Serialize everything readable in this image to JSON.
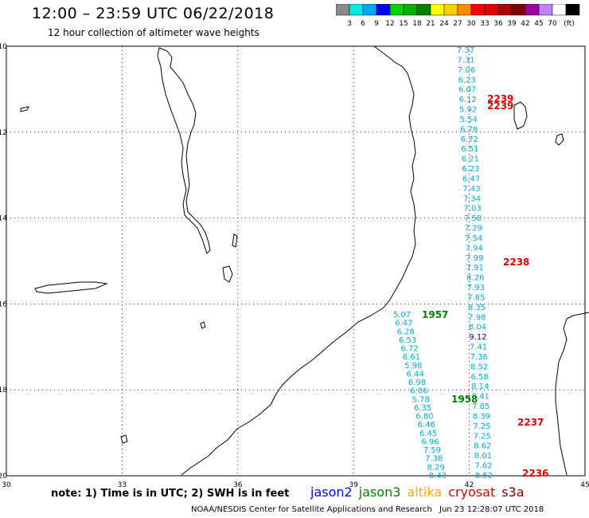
{
  "title": "12:00 – 23:59 UTC 06/22/2018",
  "subtitle": "12 hour collection of altimeter wave heights",
  "legend": {
    "colors": [
      "#8a8a8a",
      "#00e8e8",
      "#00a8ff",
      "#0000ff",
      "#00d400",
      "#00b000",
      "#008000",
      "#ffff00",
      "#ffcc00",
      "#ff8a00",
      "#ff0000",
      "#e00000",
      "#b00000",
      "#800000",
      "#a000a0",
      "#c080ff",
      "#ffffff",
      "#000000"
    ],
    "labels": [
      "3",
      "6",
      "9",
      "12",
      "15",
      "18",
      "21",
      "24",
      "27",
      "30",
      "33",
      "36",
      "39",
      "42",
      "45",
      "70",
      "(ft)"
    ]
  },
  "map": {
    "lon_range": [
      30,
      45
    ],
    "lat_range": [
      -20,
      -10
    ],
    "x_ticks": [
      "30",
      "33",
      "36",
      "39",
      "42",
      "45"
    ],
    "y_ticks": [
      "-10",
      "-12",
      "-14",
      "-16",
      "-18",
      "-20"
    ]
  },
  "tracks": [
    {
      "color": "#00aadd",
      "values": [
        "7.37",
        "7.31",
        "7.06",
        "6.23",
        "6.07",
        "6.12",
        "5.92",
        "5.54",
        "6.78",
        "6.72",
        "6.51",
        "6.21",
        "6.23",
        "6.47",
        "7.43",
        "7.34",
        "7.03",
        "7.58",
        "7.29",
        "7.54",
        "7.94",
        "7.99",
        "7.91",
        "8.26",
        "7.93",
        "7.85",
        "8.35",
        "7.98",
        "8.04",
        "9.12",
        "7.41",
        "7.36",
        "8.52",
        "6.58",
        "8.14",
        "8.41",
        "7.85",
        "8.39",
        "7.25",
        "7.25",
        "8.62",
        "8.01",
        "7.62",
        "8.52"
      ]
    },
    {
      "color": "#00aadd",
      "values": [
        "5.07",
        "6.47",
        "6.28",
        "6.53",
        "6.72",
        "6.61",
        "5.98",
        "6.44",
        "6.98",
        "6.06",
        "5.78",
        "6.35",
        "6.80",
        "6.46",
        "6.45",
        "6.96",
        "7.59",
        "7.38",
        "8.29",
        "8.43"
      ]
    }
  ],
  "time_labels": [
    {
      "text": "2239",
      "color": "#e00000"
    },
    {
      "text": "2239",
      "color": "#e00000"
    },
    {
      "text": "2238",
      "color": "#e00000"
    },
    {
      "text": "1957",
      "color": "#008000"
    },
    {
      "text": "1958",
      "color": "#008000"
    },
    {
      "text": "2237",
      "color": "#e00000"
    },
    {
      "text": "2236",
      "color": "#e00000"
    }
  ],
  "note": "note: 1) Time is in UTC; 2) SWH is in feet",
  "satellites": [
    {
      "name": "jason2",
      "color": "#0000ff"
    },
    {
      "name": "jason3",
      "color": "#008000"
    },
    {
      "name": "altika",
      "color": "#ffaa00"
    },
    {
      "name": "cryosat",
      "color": "#e00000"
    },
    {
      "name": "s3a",
      "color": "#800000"
    }
  ],
  "footer_left": "NOAA/NESDIS Center for Satellite Applications and Research",
  "footer_right": "Jun 23 12:28:07 UTC 2018"
}
